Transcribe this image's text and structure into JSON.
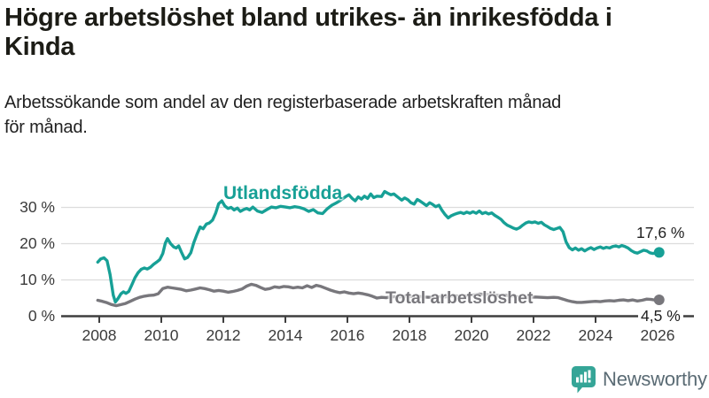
{
  "header": {
    "title_line1": "Högre arbetslöshet bland utrikes- än inrikesfödda i",
    "title_line2": "Kinda",
    "subtitle_line1": "Arbetssökande som andel av den registerbaserade arbetskraften månad",
    "subtitle_line2": "för månad."
  },
  "chart_data": {
    "type": "line",
    "title": "Högre arbetslöshet bland utrikes- än inrikesfödda i Kinda",
    "subtitle": "Arbetssökande som andel av den registerbaserade arbetskraften månad för månad.",
    "grid": "horizontal-only",
    "x_axis": {
      "range": [
        2007.9,
        2026.3
      ],
      "ticks": [
        2008,
        2010,
        2012,
        2014,
        2016,
        2018,
        2020,
        2022,
        2024,
        2026
      ]
    },
    "y_axis": {
      "range": [
        0,
        36
      ],
      "tick_values": [
        0,
        10,
        20,
        30
      ],
      "tick_labels": [
        "0 %",
        "10 %",
        "20 %",
        "30 %"
      ],
      "unit": "%"
    },
    "series": [
      {
        "name": "Utlandsfödda",
        "id": "utlandsfodda",
        "color": "#17a096",
        "end_label": "17,6 %",
        "end_value": 17.6,
        "points": [
          [
            2007.95,
            14.9
          ],
          [
            2008.05,
            15.8
          ],
          [
            2008.15,
            16.1
          ],
          [
            2008.25,
            15.3
          ],
          [
            2008.35,
            11.5
          ],
          [
            2008.45,
            5.8
          ],
          [
            2008.52,
            3.9
          ],
          [
            2008.6,
            4.8
          ],
          [
            2008.7,
            6.2
          ],
          [
            2008.78,
            6.7
          ],
          [
            2008.86,
            6.3
          ],
          [
            2008.95,
            6.8
          ],
          [
            2009.05,
            8.6
          ],
          [
            2009.15,
            10.6
          ],
          [
            2009.25,
            12.0
          ],
          [
            2009.35,
            12.9
          ],
          [
            2009.45,
            13.3
          ],
          [
            2009.55,
            13.0
          ],
          [
            2009.65,
            13.5
          ],
          [
            2009.75,
            14.3
          ],
          [
            2009.85,
            14.9
          ],
          [
            2009.95,
            15.6
          ],
          [
            2010.05,
            17.3
          ],
          [
            2010.13,
            20.2
          ],
          [
            2010.2,
            21.4
          ],
          [
            2010.3,
            20.0
          ],
          [
            2010.4,
            19.1
          ],
          [
            2010.48,
            18.8
          ],
          [
            2010.56,
            19.4
          ],
          [
            2010.65,
            17.6
          ],
          [
            2010.75,
            15.8
          ],
          [
            2010.85,
            16.2
          ],
          [
            2010.95,
            17.5
          ],
          [
            2011.05,
            20.3
          ],
          [
            2011.15,
            22.6
          ],
          [
            2011.25,
            24.6
          ],
          [
            2011.35,
            24.1
          ],
          [
            2011.45,
            25.4
          ],
          [
            2011.55,
            25.7
          ],
          [
            2011.65,
            26.5
          ],
          [
            2011.75,
            28.4
          ],
          [
            2011.85,
            31.0
          ],
          [
            2011.95,
            31.8
          ],
          [
            2012.05,
            30.4
          ],
          [
            2012.15,
            29.7
          ],
          [
            2012.25,
            30.0
          ],
          [
            2012.35,
            29.3
          ],
          [
            2012.45,
            29.8
          ],
          [
            2012.55,
            28.9
          ],
          [
            2012.65,
            29.4
          ],
          [
            2012.75,
            29.7
          ],
          [
            2012.85,
            29.3
          ],
          [
            2012.95,
            30.1
          ],
          [
            2013.1,
            29.0
          ],
          [
            2013.25,
            28.6
          ],
          [
            2013.4,
            29.4
          ],
          [
            2013.55,
            30.1
          ],
          [
            2013.7,
            29.9
          ],
          [
            2013.85,
            30.3
          ],
          [
            2014.0,
            30.1
          ],
          [
            2014.15,
            29.9
          ],
          [
            2014.3,
            30.2
          ],
          [
            2014.45,
            30.0
          ],
          [
            2014.6,
            29.6
          ],
          [
            2014.75,
            28.9
          ],
          [
            2014.9,
            29.4
          ],
          [
            2015.05,
            28.5
          ],
          [
            2015.2,
            28.3
          ],
          [
            2015.35,
            29.6
          ],
          [
            2015.5,
            30.6
          ],
          [
            2015.65,
            31.3
          ],
          [
            2015.8,
            32.1
          ],
          [
            2015.95,
            33.0
          ],
          [
            2016.05,
            33.5
          ],
          [
            2016.15,
            32.5
          ],
          [
            2016.25,
            31.8
          ],
          [
            2016.35,
            32.9
          ],
          [
            2016.45,
            32.3
          ],
          [
            2016.55,
            33.1
          ],
          [
            2016.65,
            32.5
          ],
          [
            2016.75,
            33.7
          ],
          [
            2016.85,
            32.7
          ],
          [
            2016.95,
            33.1
          ],
          [
            2017.1,
            33.0
          ],
          [
            2017.2,
            34.4
          ],
          [
            2017.3,
            33.9
          ],
          [
            2017.4,
            33.5
          ],
          [
            2017.5,
            33.7
          ],
          [
            2017.6,
            33.0
          ],
          [
            2017.75,
            32.0
          ],
          [
            2017.85,
            32.6
          ],
          [
            2017.95,
            32.1
          ],
          [
            2018.05,
            31.3
          ],
          [
            2018.15,
            30.9
          ],
          [
            2018.25,
            32.2
          ],
          [
            2018.35,
            31.7
          ],
          [
            2018.45,
            31.1
          ],
          [
            2018.55,
            30.5
          ],
          [
            2018.65,
            31.3
          ],
          [
            2018.75,
            30.8
          ],
          [
            2018.85,
            30.2
          ],
          [
            2018.95,
            30.6
          ],
          [
            2019.05,
            29.2
          ],
          [
            2019.15,
            28.0
          ],
          [
            2019.25,
            27.1
          ],
          [
            2019.35,
            27.7
          ],
          [
            2019.45,
            28.1
          ],
          [
            2019.55,
            28.4
          ],
          [
            2019.65,
            28.6
          ],
          [
            2019.75,
            28.3
          ],
          [
            2019.85,
            28.7
          ],
          [
            2019.95,
            28.4
          ],
          [
            2020.05,
            28.8
          ],
          [
            2020.15,
            28.4
          ],
          [
            2020.25,
            29.0
          ],
          [
            2020.35,
            28.3
          ],
          [
            2020.45,
            28.6
          ],
          [
            2020.55,
            28.2
          ],
          [
            2020.65,
            28.5
          ],
          [
            2020.75,
            27.8
          ],
          [
            2020.85,
            27.3
          ],
          [
            2020.95,
            26.7
          ],
          [
            2021.05,
            25.8
          ],
          [
            2021.15,
            25.1
          ],
          [
            2021.25,
            24.7
          ],
          [
            2021.35,
            24.3
          ],
          [
            2021.45,
            24.0
          ],
          [
            2021.55,
            24.4
          ],
          [
            2021.65,
            25.1
          ],
          [
            2021.75,
            25.7
          ],
          [
            2021.85,
            26.0
          ],
          [
            2021.95,
            25.8
          ],
          [
            2022.05,
            26.0
          ],
          [
            2022.15,
            25.6
          ],
          [
            2022.25,
            25.9
          ],
          [
            2022.35,
            25.2
          ],
          [
            2022.45,
            24.7
          ],
          [
            2022.55,
            24.2
          ],
          [
            2022.65,
            23.9
          ],
          [
            2022.75,
            24.2
          ],
          [
            2022.85,
            24.5
          ],
          [
            2022.95,
            23.3
          ],
          [
            2023.05,
            20.5
          ],
          [
            2023.15,
            18.9
          ],
          [
            2023.25,
            18.3
          ],
          [
            2023.35,
            18.8
          ],
          [
            2023.45,
            18.2
          ],
          [
            2023.55,
            18.6
          ],
          [
            2023.65,
            18.0
          ],
          [
            2023.75,
            18.5
          ],
          [
            2023.85,
            18.9
          ],
          [
            2023.95,
            18.4
          ],
          [
            2024.05,
            18.8
          ],
          [
            2024.15,
            19.1
          ],
          [
            2024.25,
            18.7
          ],
          [
            2024.35,
            19.0
          ],
          [
            2024.45,
            18.8
          ],
          [
            2024.55,
            19.2
          ],
          [
            2024.65,
            19.4
          ],
          [
            2024.75,
            19.1
          ],
          [
            2024.85,
            19.5
          ],
          [
            2024.95,
            19.2
          ],
          [
            2025.05,
            18.8
          ],
          [
            2025.15,
            18.1
          ],
          [
            2025.25,
            17.6
          ],
          [
            2025.35,
            17.4
          ],
          [
            2025.45,
            17.8
          ],
          [
            2025.55,
            18.2
          ],
          [
            2025.65,
            18.0
          ],
          [
            2025.75,
            17.5
          ],
          [
            2025.85,
            17.3
          ],
          [
            2025.95,
            17.5
          ],
          [
            2026.05,
            17.6
          ]
        ]
      },
      {
        "name": "Total arbetslöshet",
        "id": "total-arbetsloshet",
        "color": "#78777c",
        "end_label": "4,5 %",
        "end_value": 4.5,
        "points": [
          [
            2007.95,
            4.4
          ],
          [
            2008.1,
            4.1
          ],
          [
            2008.25,
            3.7
          ],
          [
            2008.4,
            3.2
          ],
          [
            2008.55,
            2.9
          ],
          [
            2008.7,
            3.2
          ],
          [
            2008.85,
            3.5
          ],
          [
            2009.0,
            4.1
          ],
          [
            2009.15,
            4.7
          ],
          [
            2009.3,
            5.2
          ],
          [
            2009.45,
            5.5
          ],
          [
            2009.6,
            5.7
          ],
          [
            2009.75,
            5.8
          ],
          [
            2009.9,
            6.2
          ],
          [
            2010.05,
            7.6
          ],
          [
            2010.2,
            8.0
          ],
          [
            2010.35,
            7.8
          ],
          [
            2010.5,
            7.6
          ],
          [
            2010.65,
            7.4
          ],
          [
            2010.8,
            7.0
          ],
          [
            2010.95,
            7.2
          ],
          [
            2011.1,
            7.5
          ],
          [
            2011.25,
            7.8
          ],
          [
            2011.4,
            7.6
          ],
          [
            2011.55,
            7.3
          ],
          [
            2011.7,
            6.9
          ],
          [
            2011.85,
            7.1
          ],
          [
            2012.0,
            6.9
          ],
          [
            2012.15,
            6.6
          ],
          [
            2012.3,
            6.8
          ],
          [
            2012.45,
            7.1
          ],
          [
            2012.6,
            7.5
          ],
          [
            2012.75,
            8.3
          ],
          [
            2012.9,
            8.8
          ],
          [
            2013.05,
            8.5
          ],
          [
            2013.2,
            7.9
          ],
          [
            2013.35,
            7.4
          ],
          [
            2013.5,
            7.6
          ],
          [
            2013.65,
            8.1
          ],
          [
            2013.8,
            7.9
          ],
          [
            2013.95,
            8.2
          ],
          [
            2014.1,
            8.1
          ],
          [
            2014.25,
            7.8
          ],
          [
            2014.4,
            8.0
          ],
          [
            2014.55,
            7.8
          ],
          [
            2014.7,
            8.4
          ],
          [
            2014.85,
            7.9
          ],
          [
            2015.0,
            8.5
          ],
          [
            2015.15,
            8.2
          ],
          [
            2015.3,
            7.7
          ],
          [
            2015.45,
            7.2
          ],
          [
            2015.6,
            6.8
          ],
          [
            2015.75,
            6.5
          ],
          [
            2015.9,
            6.7
          ],
          [
            2016.05,
            6.4
          ],
          [
            2016.2,
            6.2
          ],
          [
            2016.35,
            6.4
          ],
          [
            2016.5,
            6.2
          ],
          [
            2016.65,
            5.9
          ],
          [
            2016.8,
            5.5
          ],
          [
            2016.95,
            5.0
          ],
          [
            2017.1,
            5.2
          ],
          [
            2017.25,
            5.1
          ],
          [
            2017.45,
            5.4
          ],
          [
            2017.65,
            5.3
          ],
          [
            2017.85,
            5.5
          ],
          [
            2018.05,
            5.4
          ],
          [
            2018.25,
            5.5
          ],
          [
            2018.45,
            5.3
          ],
          [
            2018.65,
            5.2
          ],
          [
            2018.85,
            5.4
          ],
          [
            2019.05,
            5.3
          ],
          [
            2019.25,
            5.4
          ],
          [
            2019.45,
            5.6
          ],
          [
            2019.65,
            5.5
          ],
          [
            2019.85,
            5.6
          ],
          [
            2020.05,
            5.8
          ],
          [
            2020.25,
            6.1
          ],
          [
            2020.45,
            6.0
          ],
          [
            2020.65,
            5.8
          ],
          [
            2020.85,
            5.7
          ],
          [
            2021.05,
            5.8
          ],
          [
            2021.25,
            5.6
          ],
          [
            2021.45,
            5.4
          ],
          [
            2021.65,
            5.3
          ],
          [
            2021.85,
            5.2
          ],
          [
            2022.05,
            5.3
          ],
          [
            2022.25,
            5.2
          ],
          [
            2022.45,
            5.1
          ],
          [
            2022.65,
            5.2
          ],
          [
            2022.8,
            5.1
          ],
          [
            2022.95,
            4.7
          ],
          [
            2023.1,
            4.3
          ],
          [
            2023.25,
            4.0
          ],
          [
            2023.4,
            3.8
          ],
          [
            2023.55,
            3.8
          ],
          [
            2023.7,
            3.9
          ],
          [
            2023.85,
            4.0
          ],
          [
            2024.0,
            4.1
          ],
          [
            2024.15,
            4.0
          ],
          [
            2024.3,
            4.2
          ],
          [
            2024.45,
            4.3
          ],
          [
            2024.6,
            4.2
          ],
          [
            2024.75,
            4.4
          ],
          [
            2024.9,
            4.5
          ],
          [
            2025.05,
            4.3
          ],
          [
            2025.2,
            4.5
          ],
          [
            2025.35,
            4.2
          ],
          [
            2025.5,
            4.4
          ],
          [
            2025.65,
            4.7
          ],
          [
            2025.8,
            4.6
          ],
          [
            2025.95,
            4.4
          ],
          [
            2026.05,
            4.5
          ]
        ]
      }
    ]
  },
  "branding": {
    "logo_text": "Newsworthy",
    "icon_color": "#35a597",
    "text_color": "#5a6b74"
  }
}
